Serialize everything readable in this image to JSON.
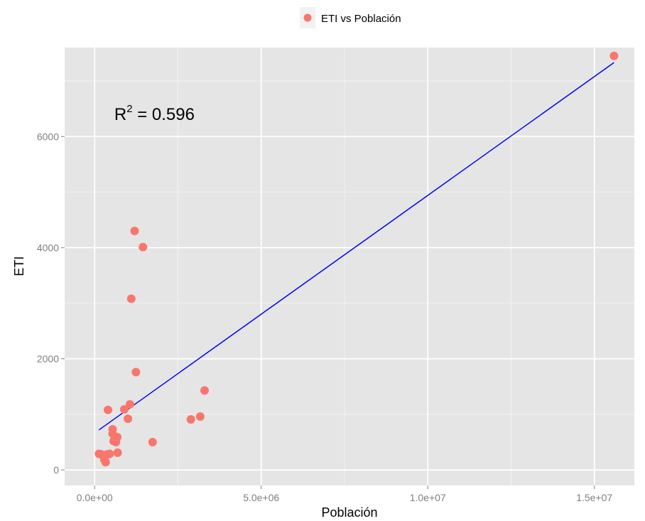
{
  "chart_data": {
    "type": "scatter",
    "title": "",
    "xlabel": "Población",
    "ylabel": "ETI",
    "xlim": [
      -900000,
      16200000
    ],
    "ylim": [
      -280,
      7600
    ],
    "x_ticks": [
      0,
      5000000,
      10000000,
      15000000
    ],
    "x_tick_labels": [
      "0.0e+00",
      "5.0e+06",
      "1.0e+07",
      "1.5e+07"
    ],
    "y_ticks": [
      0,
      2000,
      4000,
      6000
    ],
    "y_tick_labels": [
      "0",
      "2000",
      "4000",
      "6000"
    ],
    "grid": true,
    "legend": {
      "position": "top",
      "label": "ETI vs Población",
      "color": "#f8766d"
    },
    "series": [
      {
        "name": "ETI vs Población",
        "color": "#f8766d",
        "points": [
          {
            "x": 130000,
            "y": 290
          },
          {
            "x": 200000,
            "y": 280
          },
          {
            "x": 290000,
            "y": 190
          },
          {
            "x": 330000,
            "y": 140
          },
          {
            "x": 380000,
            "y": 280
          },
          {
            "x": 400000,
            "y": 1080
          },
          {
            "x": 450000,
            "y": 290
          },
          {
            "x": 540000,
            "y": 650
          },
          {
            "x": 540000,
            "y": 730
          },
          {
            "x": 570000,
            "y": 520
          },
          {
            "x": 640000,
            "y": 500
          },
          {
            "x": 680000,
            "y": 590
          },
          {
            "x": 690000,
            "y": 310
          },
          {
            "x": 890000,
            "y": 1090
          },
          {
            "x": 1000000,
            "y": 920
          },
          {
            "x": 1060000,
            "y": 1180
          },
          {
            "x": 1100000,
            "y": 3080
          },
          {
            "x": 1200000,
            "y": 4300
          },
          {
            "x": 1240000,
            "y": 1760
          },
          {
            "x": 1450000,
            "y": 4010
          },
          {
            "x": 1740000,
            "y": 500
          },
          {
            "x": 2890000,
            "y": 910
          },
          {
            "x": 3170000,
            "y": 960
          },
          {
            "x": 3300000,
            "y": 1430
          },
          {
            "x": 15590000,
            "y": 7450
          }
        ]
      }
    ],
    "fit_line": {
      "color": "#0000ff",
      "x": [
        130000,
        15590000
      ],
      "y": [
        720,
        7330
      ]
    },
    "annotation": {
      "base": "R",
      "sup": "2",
      "text": " = 0.596",
      "x": 1400000,
      "y": 6400
    }
  }
}
